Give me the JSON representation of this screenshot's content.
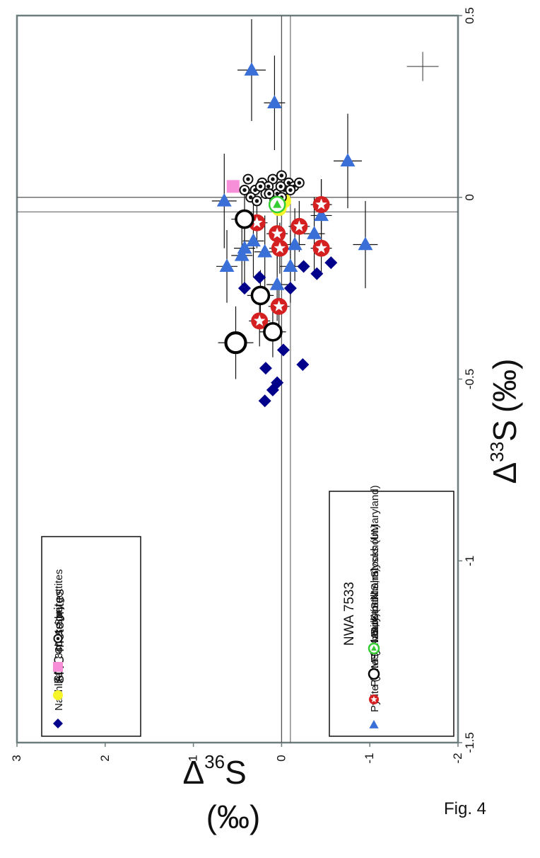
{
  "figure_label": "Fig. 4",
  "chart_data": {
    "type": "scatter",
    "orientation": "rotated-90-counterclockwise",
    "xlabel": "Δ33S (‰)",
    "ylabel": "Δ36S (‰)",
    "xlabel_parts": {
      "delta": "Δ",
      "sup": "33",
      "elem": "S",
      "unit": "(‰)"
    },
    "ylabel_parts": {
      "delta": "Δ",
      "sup": "36",
      "elem": "S",
      "unit": "(‰)"
    },
    "xlim": [
      -1.5,
      0.5
    ],
    "ylim": [
      -2,
      3
    ],
    "xticks": [
      "-1.5",
      "-1",
      "-0.5",
      "0",
      "0.5"
    ],
    "yticks": [
      "-2",
      "-1",
      "0",
      "1",
      "2",
      "3"
    ],
    "reference_lines": {
      "x": [
        0,
        -0.04
      ],
      "y": [
        0,
        -0.1
      ]
    },
    "legends": [
      {
        "title": "SNC meteorites",
        "placement": "upper-left",
        "items": [
          {
            "label": "Nakhlites",
            "marker": "diamond",
            "color": "#00008b"
          },
          {
            "label": "ALH 84001",
            "marker": "circle",
            "color": "#f5f52a"
          },
          {
            "label": "Chassigny",
            "marker": "square",
            "color": "#f78fd8"
          },
          {
            "label": "Shergottites",
            "marker": "dotted-circle",
            "color": "#111111"
          }
        ]
      },
      {
        "title": "NWA 7533",
        "placement": "lower-left",
        "items": [
          {
            "label": "Pyrite (SIMS, Nancy)",
            "marker": "triangle",
            "color": "#3a6fd8"
          },
          {
            "label": "Pyrite (SIMS, Stockholm)",
            "marker": "star-circle",
            "color": "#d42020"
          },
          {
            "label": "Pyrrhotite (SIMS, Stockholm)",
            "marker": "open-circle",
            "color": "#000000"
          },
          {
            "label": "Bulk-rock analyses (UMaryland)",
            "marker": "triangle-circle",
            "color": "#33cc33"
          }
        ]
      }
    ],
    "series": [
      {
        "name": "Nakhlites",
        "marker": "diamond",
        "color": "#00008b",
        "points": [
          {
            "x": -0.56,
            "y": 0.19
          },
          {
            "x": -0.53,
            "y": 0.1
          },
          {
            "x": -0.51,
            "y": 0.05
          },
          {
            "x": -0.47,
            "y": 0.18
          },
          {
            "x": -0.46,
            "y": -0.24
          },
          {
            "x": -0.42,
            "y": -0.02
          },
          {
            "x": -0.25,
            "y": 0.42
          },
          {
            "x": -0.22,
            "y": 0.25
          },
          {
            "x": -0.25,
            "y": -0.1
          },
          {
            "x": -0.19,
            "y": -0.25
          },
          {
            "x": -0.21,
            "y": -0.4
          },
          {
            "x": -0.18,
            "y": -0.56
          }
        ]
      },
      {
        "name": "ALH 84001",
        "marker": "circle",
        "color": "#f5f52a",
        "points": [
          {
            "x": -0.03,
            "y": 0.03
          },
          {
            "x": -0.01,
            "y": -0.02
          }
        ]
      },
      {
        "name": "Chassigny",
        "marker": "square",
        "color": "#f78fd8",
        "points": [
          {
            "x": 0.03,
            "y": 0.55
          }
        ]
      },
      {
        "name": "Shergottites",
        "marker": "dotted-circle",
        "color": "#111111",
        "points": [
          {
            "x": 0.05,
            "y": 0.38
          },
          {
            "x": 0.04,
            "y": 0.22
          },
          {
            "x": 0.05,
            "y": 0.1
          },
          {
            "x": 0.06,
            "y": 0.0
          },
          {
            "x": 0.04,
            "y": -0.08
          },
          {
            "x": 0.03,
            "y": -0.14
          },
          {
            "x": 0.02,
            "y": 0.42
          },
          {
            "x": 0.02,
            "y": 0.3
          },
          {
            "x": 0.03,
            "y": 0.15
          },
          {
            "x": 0.01,
            "y": 0.05
          },
          {
            "x": 0.02,
            "y": -0.03
          },
          {
            "x": 0.0,
            "y": 0.35
          },
          {
            "x": 0.01,
            "y": 0.18
          },
          {
            "x": -0.01,
            "y": 0.28
          },
          {
            "x": -0.01,
            "y": 0.08
          },
          {
            "x": 0.03,
            "y": 0.01
          },
          {
            "x": 0.04,
            "y": -0.2
          },
          {
            "x": 0.0,
            "y": 0.0
          },
          {
            "x": 0.02,
            "y": -0.1
          },
          {
            "x": 0.03,
            "y": 0.24
          },
          {
            "x": 0.01,
            "y": 0.14
          }
        ]
      },
      {
        "name": "Pyrite (SIMS, Nancy)",
        "marker": "triangle",
        "color": "#3a6fd8",
        "points": [
          {
            "x": 0.35,
            "y": 0.34,
            "xerr": 0.14,
            "yerr": 0.16
          },
          {
            "x": 0.26,
            "y": 0.08,
            "xerr": 0.13,
            "yerr": 0.12
          },
          {
            "x": 0.1,
            "y": -0.75,
            "xerr": 0.13,
            "yerr": 0.16
          },
          {
            "x": -0.13,
            "y": -0.95,
            "xerr": 0.12,
            "yerr": 0.14
          },
          {
            "x": -0.01,
            "y": 0.65,
            "xerr": 0.13,
            "yerr": 0.14
          },
          {
            "x": -0.05,
            "y": -0.45,
            "xerr": 0.1,
            "yerr": 0.12
          },
          {
            "x": -0.1,
            "y": -0.37,
            "xerr": 0.1,
            "yerr": 0.12
          },
          {
            "x": -0.12,
            "y": 0.32,
            "xerr": 0.1,
            "yerr": 0.12
          },
          {
            "x": -0.14,
            "y": 0.42,
            "xerr": 0.1,
            "yerr": 0.12
          },
          {
            "x": -0.16,
            "y": 0.45,
            "xerr": 0.1,
            "yerr": 0.12
          },
          {
            "x": -0.15,
            "y": 0.19,
            "xerr": 0.1,
            "yerr": 0.12
          },
          {
            "x": -0.13,
            "y": -0.15,
            "xerr": 0.1,
            "yerr": 0.12
          },
          {
            "x": -0.19,
            "y": 0.62,
            "xerr": 0.1,
            "yerr": 0.12
          },
          {
            "x": -0.19,
            "y": -0.1,
            "xerr": 0.1,
            "yerr": 0.12
          },
          {
            "x": -0.24,
            "y": 0.05,
            "xerr": 0.1,
            "yerr": 0.12
          }
        ]
      },
      {
        "name": "Pyrite (SIMS, Stockholm)",
        "marker": "star-circle",
        "color": "#d42020",
        "points": [
          {
            "x": -0.02,
            "y": -0.45,
            "xerr": 0.07,
            "yerr": 0.12
          },
          {
            "x": -0.07,
            "y": 0.28,
            "xerr": 0.07,
            "yerr": 0.12
          },
          {
            "x": -0.08,
            "y": -0.2,
            "xerr": 0.07,
            "yerr": 0.12
          },
          {
            "x": -0.1,
            "y": 0.05,
            "xerr": 0.07,
            "yerr": 0.12
          },
          {
            "x": -0.14,
            "y": 0.02,
            "xerr": 0.07,
            "yerr": 0.12
          },
          {
            "x": -0.14,
            "y": -0.45,
            "xerr": 0.07,
            "yerr": 0.12
          },
          {
            "x": -0.3,
            "y": 0.03,
            "xerr": 0.07,
            "yerr": 0.12
          },
          {
            "x": -0.34,
            "y": 0.25,
            "xerr": 0.07,
            "yerr": 0.12
          }
        ]
      },
      {
        "name": "Pyrrhotite (SIMS, Stockholm)",
        "marker": "open-circle",
        "color": "#000000",
        "points": [
          {
            "x": -0.06,
            "y": 0.42,
            "xerr": 0.07,
            "yerr": 0.15
          },
          {
            "x": -0.27,
            "y": 0.24,
            "xerr": 0.07,
            "yerr": 0.15
          },
          {
            "x": -0.37,
            "y": 0.1,
            "xerr": 0.07,
            "yerr": 0.15
          },
          {
            "x": -0.4,
            "y": 0.52,
            "xerr": 0.1,
            "yerr": 0.2
          }
        ]
      },
      {
        "name": "Bulk-rock analyses (UMaryland)",
        "marker": "triangle-circle",
        "color": "#33cc33",
        "points": [
          {
            "x": -0.02,
            "y": 0.05
          }
        ]
      }
    ],
    "reference_error_bar": {
      "x": 0.36,
      "y": -1.6,
      "xerr": 0.04,
      "yerr": 0.18
    }
  }
}
